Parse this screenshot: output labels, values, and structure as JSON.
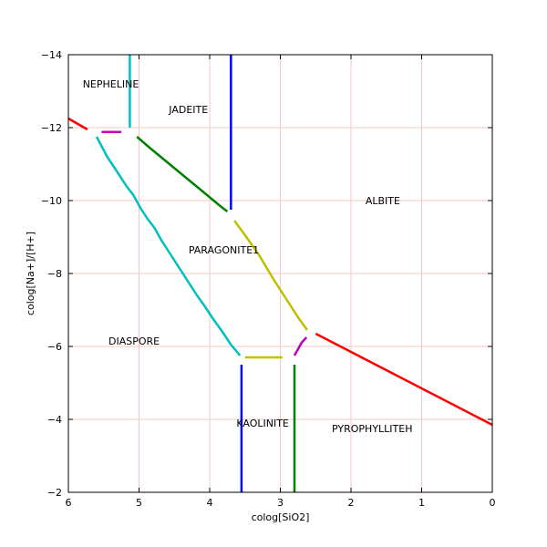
{
  "chart_data": {
    "type": "line",
    "xlabel": "colog[SiO2]",
    "ylabel": "colog[Na+]/[H+]",
    "xlim": [
      6,
      0
    ],
    "ylim": [
      -2,
      -14
    ],
    "x_ticks": [
      6,
      5,
      4,
      3,
      2,
      1,
      0
    ],
    "y_ticks": [
      -14,
      -12,
      -10,
      -8,
      -6,
      -4,
      -2
    ],
    "grid": true,
    "grid_color": "#f4c7c7",
    "labels": [
      {
        "text": "NEPHELINE",
        "x": 5.4,
        "y": -13.2
      },
      {
        "text": "JADEITE",
        "x": 4.3,
        "y": -12.5
      },
      {
        "text": "ALBITE",
        "x": 1.55,
        "y": -10.0
      },
      {
        "text": "PARAGONITE1",
        "x": 3.8,
        "y": -8.65
      },
      {
        "text": "DIASPORE",
        "x": 5.07,
        "y": -6.15
      },
      {
        "text": "KAOLINITE",
        "x": 3.25,
        "y": -3.9
      },
      {
        "text": "PYROPHYLLITEH",
        "x": 1.7,
        "y": -3.75
      }
    ],
    "series": [
      {
        "color": "#ff0000",
        "points": [
          [
            6.0,
            -12.25
          ],
          [
            5.73,
            -11.95
          ]
        ]
      },
      {
        "color": "#ff0000",
        "points": [
          [
            2.5,
            -6.35
          ],
          [
            0.0,
            -3.85
          ]
        ]
      },
      {
        "color": "#00bfbf",
        "points": [
          [
            5.13,
            -14.0
          ],
          [
            5.13,
            -12.0
          ]
        ]
      },
      {
        "color": "#00bfbf",
        "points": [
          [
            5.6,
            -11.75
          ],
          [
            5.45,
            -11.2
          ],
          [
            5.33,
            -10.85
          ],
          [
            5.18,
            -10.4
          ],
          [
            5.08,
            -10.15
          ],
          [
            4.98,
            -9.8
          ],
          [
            4.88,
            -9.5
          ],
          [
            4.78,
            -9.25
          ],
          [
            4.68,
            -8.9
          ],
          [
            4.58,
            -8.6
          ],
          [
            4.48,
            -8.3
          ],
          [
            4.38,
            -8.0
          ],
          [
            4.28,
            -7.7
          ],
          [
            4.18,
            -7.4
          ],
          [
            4.07,
            -7.1
          ],
          [
            3.95,
            -6.75
          ],
          [
            3.82,
            -6.4
          ],
          [
            3.7,
            -6.05
          ],
          [
            3.57,
            -5.75
          ]
        ]
      },
      {
        "color": "#bf00bf",
        "points": [
          [
            5.53,
            -11.88
          ],
          [
            5.25,
            -11.88
          ]
        ]
      },
      {
        "color": "#bf00bf",
        "points": [
          [
            2.8,
            -5.75
          ],
          [
            2.7,
            -6.1
          ],
          [
            2.63,
            -6.25
          ]
        ]
      },
      {
        "color": "#008000",
        "points": [
          [
            5.03,
            -11.75
          ],
          [
            4.85,
            -11.45
          ],
          [
            4.6,
            -11.05
          ],
          [
            4.35,
            -10.65
          ],
          [
            4.1,
            -10.25
          ],
          [
            3.85,
            -9.85
          ],
          [
            3.75,
            -9.7
          ]
        ]
      },
      {
        "color": "#0000ff",
        "points": [
          [
            3.7,
            -14.0
          ],
          [
            3.7,
            -9.75
          ]
        ]
      },
      {
        "color": "#0000ff",
        "points": [
          [
            3.55,
            -5.5
          ],
          [
            3.55,
            -2.0
          ]
        ]
      },
      {
        "color": "#bfbf00",
        "points": [
          [
            3.65,
            -9.45
          ],
          [
            3.5,
            -9.05
          ],
          [
            3.3,
            -8.5
          ],
          [
            3.1,
            -7.85
          ],
          [
            2.9,
            -7.25
          ],
          [
            2.75,
            -6.8
          ],
          [
            2.62,
            -6.45
          ]
        ]
      },
      {
        "color": "#bfbf00",
        "points": [
          [
            3.5,
            -5.7
          ],
          [
            2.97,
            -5.7
          ]
        ]
      },
      {
        "color": "#008000",
        "points": [
          [
            2.8,
            -5.5
          ],
          [
            2.8,
            -2.0
          ]
        ]
      }
    ]
  }
}
